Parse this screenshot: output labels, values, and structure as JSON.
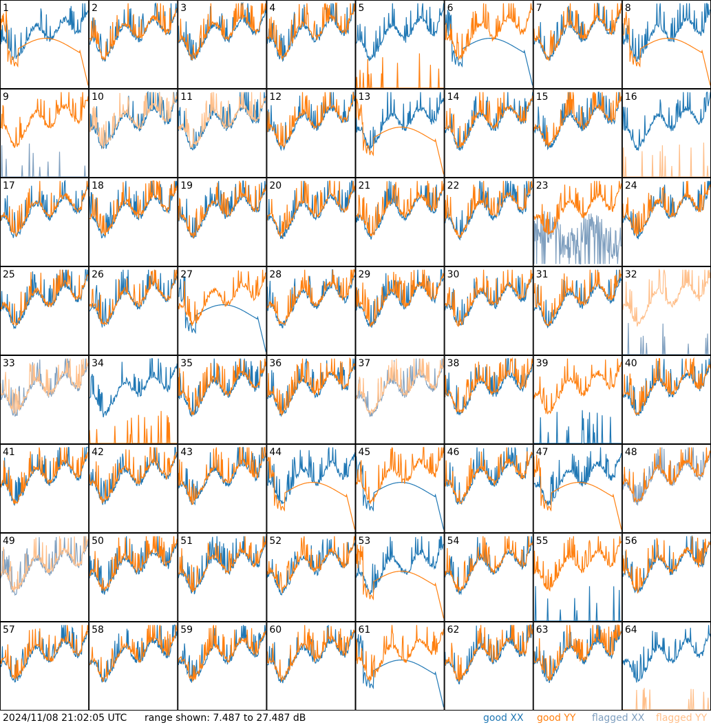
{
  "footer": {
    "timestamp": "2024/11/08 21:02:05 UTC",
    "range_text": "range shown: 7.487 to 27.487 dB"
  },
  "legend": [
    {
      "label": "good XX",
      "color": "#1f77b4"
    },
    {
      "label": "good YY",
      "color": "#ff7f0e"
    },
    {
      "label": "flagged XX",
      "color": "#7f9fbf"
    },
    {
      "label": "flagged YY",
      "color": "#ffbf8a"
    }
  ],
  "chart_data": {
    "type": "line",
    "grid": {
      "rows": 8,
      "cols": 8
    },
    "ylim_db": [
      7.487,
      27.487
    ],
    "panels": [
      {
        "id": "1",
        "xx": "good",
        "yy": "good",
        "yy_shape": "smooth-dip"
      },
      {
        "id": "2",
        "xx": "good",
        "yy": "good"
      },
      {
        "id": "3",
        "xx": "good",
        "yy": "good"
      },
      {
        "id": "4",
        "xx": "good",
        "yy": "good"
      },
      {
        "id": "5",
        "xx": "good",
        "yy": "good",
        "yy_shape": "spikes-low"
      },
      {
        "id": "6",
        "xx": "good",
        "yy": "good",
        "xx_shape": "smooth-dip"
      },
      {
        "id": "7",
        "xx": "good",
        "yy": "good"
      },
      {
        "id": "8",
        "xx": "good",
        "yy": "good",
        "yy_shape": "smooth-dip"
      },
      {
        "id": "9",
        "xx": "flagged",
        "yy": "good",
        "xx_shape": "spikes-low"
      },
      {
        "id": "10",
        "xx": "good",
        "yy": "flagged"
      },
      {
        "id": "11",
        "xx": "good",
        "yy": "flagged"
      },
      {
        "id": "12",
        "xx": "good",
        "yy": "good"
      },
      {
        "id": "13",
        "xx": "good",
        "yy": "good",
        "yy_shape": "smooth-dip"
      },
      {
        "id": "14",
        "xx": "good",
        "yy": "good"
      },
      {
        "id": "15",
        "xx": "good",
        "yy": "good"
      },
      {
        "id": "16",
        "xx": "good",
        "yy": "flagged",
        "yy_shape": "spikes-low"
      },
      {
        "id": "17",
        "xx": "good",
        "yy": "good"
      },
      {
        "id": "18",
        "xx": "good",
        "yy": "good"
      },
      {
        "id": "19",
        "xx": "good",
        "yy": "good"
      },
      {
        "id": "20",
        "xx": "good",
        "yy": "good"
      },
      {
        "id": "21",
        "xx": "good",
        "yy": "good"
      },
      {
        "id": "22",
        "xx": "good",
        "yy": "good"
      },
      {
        "id": "23",
        "xx": "flagged",
        "yy": "good",
        "xx_shape": "noisy-low"
      },
      {
        "id": "24",
        "xx": "good",
        "yy": "good"
      },
      {
        "id": "25",
        "xx": "good",
        "yy": "good"
      },
      {
        "id": "26",
        "xx": "good",
        "yy": "good"
      },
      {
        "id": "27",
        "xx": "good",
        "yy": "good",
        "xx_shape": "smooth-dip"
      },
      {
        "id": "28",
        "xx": "good",
        "yy": "good"
      },
      {
        "id": "29",
        "xx": "good",
        "yy": "good"
      },
      {
        "id": "30",
        "xx": "good",
        "yy": "good"
      },
      {
        "id": "31",
        "xx": "good",
        "yy": "good"
      },
      {
        "id": "32",
        "xx": "flagged",
        "yy": "flagged",
        "xx_shape": "spikes-low"
      },
      {
        "id": "33",
        "xx": "flagged",
        "yy": "flagged"
      },
      {
        "id": "34",
        "xx": "good",
        "yy": "good",
        "yy_shape": "spikes-low"
      },
      {
        "id": "35",
        "xx": "good",
        "yy": "good"
      },
      {
        "id": "36",
        "xx": "good",
        "yy": "good"
      },
      {
        "id": "37",
        "xx": "flagged",
        "yy": "flagged"
      },
      {
        "id": "38",
        "xx": "good",
        "yy": "good"
      },
      {
        "id": "39",
        "xx": "good",
        "yy": "good",
        "xx_shape": "spikes-low"
      },
      {
        "id": "40",
        "xx": "good",
        "yy": "good"
      },
      {
        "id": "41",
        "xx": "good",
        "yy": "good"
      },
      {
        "id": "42",
        "xx": "good",
        "yy": "good"
      },
      {
        "id": "43",
        "xx": "good",
        "yy": "good"
      },
      {
        "id": "44",
        "xx": "good",
        "yy": "good",
        "yy_shape": "smooth-dip"
      },
      {
        "id": "45",
        "xx": "good",
        "yy": "good",
        "xx_shape": "smooth-dip"
      },
      {
        "id": "46",
        "xx": "good",
        "yy": "good"
      },
      {
        "id": "47",
        "xx": "good",
        "yy": "good",
        "yy_shape": "smooth-dip"
      },
      {
        "id": "48",
        "xx": "flagged",
        "yy": "good"
      },
      {
        "id": "49",
        "xx": "flagged",
        "yy": "flagged"
      },
      {
        "id": "50",
        "xx": "good",
        "yy": "good"
      },
      {
        "id": "51",
        "xx": "good",
        "yy": "good"
      },
      {
        "id": "52",
        "xx": "good",
        "yy": "good"
      },
      {
        "id": "53",
        "xx": "good",
        "yy": "good",
        "yy_shape": "smooth-dip"
      },
      {
        "id": "54",
        "xx": "good",
        "yy": "good"
      },
      {
        "id": "55",
        "xx": "good",
        "yy": "good",
        "xx_shape": "spikes-low"
      },
      {
        "id": "56",
        "xx": "good",
        "yy": "good"
      },
      {
        "id": "57",
        "xx": "good",
        "yy": "good"
      },
      {
        "id": "58",
        "xx": "good",
        "yy": "good"
      },
      {
        "id": "59",
        "xx": "good",
        "yy": "good"
      },
      {
        "id": "60",
        "xx": "good",
        "yy": "good"
      },
      {
        "id": "61",
        "xx": "good",
        "yy": "good",
        "xx_shape": "smooth-dip"
      },
      {
        "id": "62",
        "xx": "good",
        "yy": "good"
      },
      {
        "id": "63",
        "xx": "good",
        "yy": "good"
      },
      {
        "id": "64",
        "xx": "good",
        "yy": "flagged",
        "yy_shape": "spikes-low"
      }
    ]
  }
}
